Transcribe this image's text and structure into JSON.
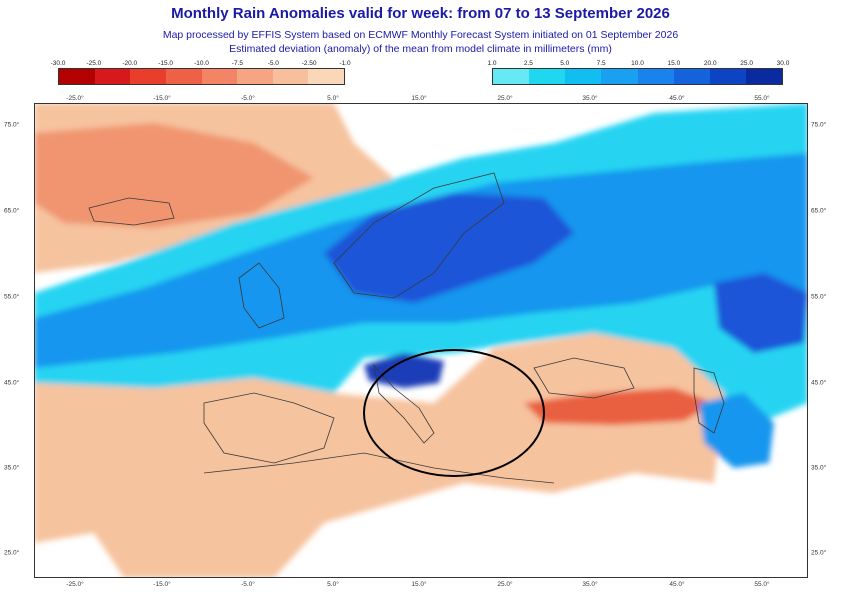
{
  "header": {
    "title": "Monthly Rain Anomalies valid for week: from 07 to 13 September 2026",
    "subtitle_1": "Map processed by EFFIS System based on ECMWF Monthly Forecast System initiated on 01 September 2026",
    "subtitle_2": "Estimated deviation (anomaly) of the mean from model climate in millimeters (mm)"
  },
  "legend_dry": {
    "ticks": [
      "-30.0",
      "-25.0",
      "-20.0",
      "-15.0",
      "-10.0",
      "-7.5",
      "-5.0",
      "-2.50",
      "-1.0"
    ],
    "colors": [
      "#b30000",
      "#d7191c",
      "#e83e2b",
      "#ee6147",
      "#f38466",
      "#f6a583",
      "#f8bf9d",
      "#fad7b8"
    ]
  },
  "legend_wet": {
    "ticks": [
      "1.0",
      "2.5",
      "5.0",
      "7.5",
      "10.0",
      "15.0",
      "20.0",
      "25.0",
      "30.0"
    ],
    "colors": [
      "#66e8f5",
      "#1fd8f0",
      "#12bdf2",
      "#1aa0f0",
      "#1a82ec",
      "#1462dc",
      "#0d44c4",
      "#0a2aa0"
    ]
  },
  "axes": {
    "lon_labels": [
      "-25.0°",
      "-15.0°",
      "-5.0°",
      "5.0°",
      "15.0°",
      "25.0°",
      "35.0°",
      "45.0°",
      "55.0°"
    ],
    "lat_labels": [
      "75.0°",
      "65.0°",
      "55.0°",
      "45.0°",
      "35.0°",
      "25.0°"
    ]
  },
  "colors": {
    "dry_light": "#f6c39f",
    "dry_medium": "#f0956f",
    "dry_strong": "#e9603f",
    "wet_light": "#25d4f2",
    "wet_medium": "#1596ee",
    "wet_strong": "#1d55d8",
    "wet_deep": "#1a3cb8",
    "neutral": "#ffffff",
    "borders": "#3a3a3a"
  },
  "annotation": "circle-highlight-italy-balkans"
}
